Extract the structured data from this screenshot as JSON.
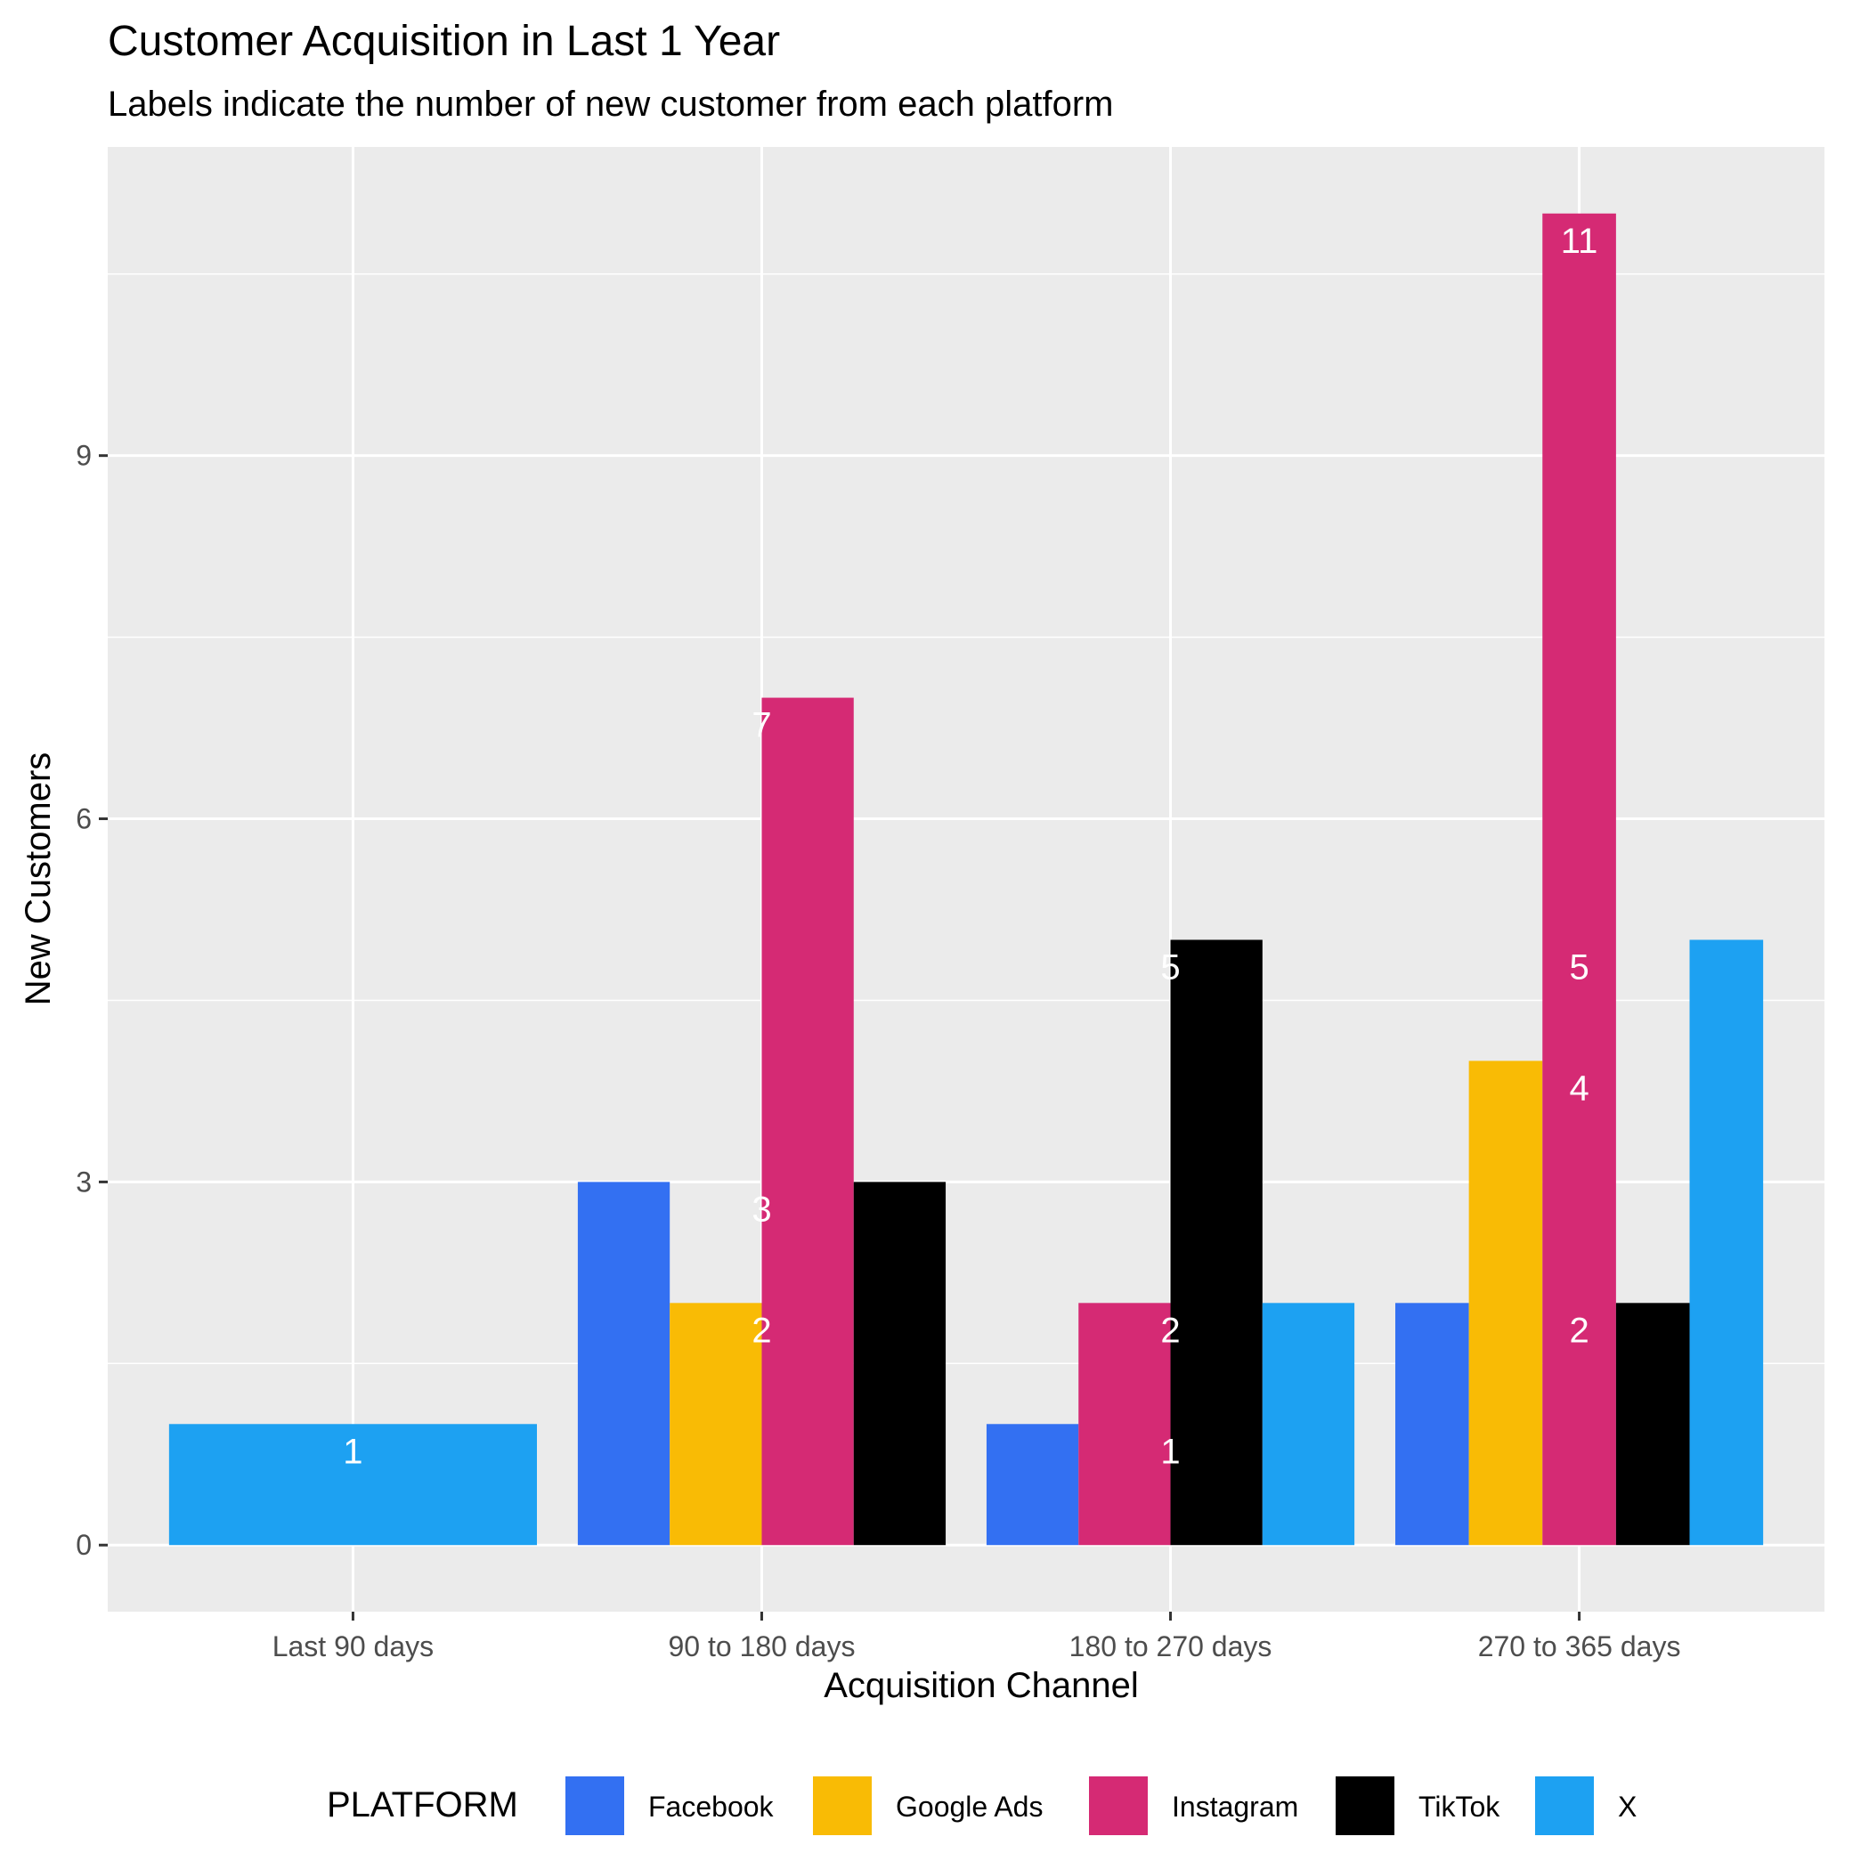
{
  "chart_data": {
    "type": "bar",
    "title": "Customer Acquisition in Last 1 Year",
    "subtitle": "Labels indicate the number of new customer from each platform",
    "xlabel": "Acquisition Channel",
    "ylabel": "New Customers",
    "categories": [
      "Last 90 days",
      "90 to 180 days",
      "180 to 270 days",
      "270 to 365 days"
    ],
    "ylim": [
      -0.55,
      11.55
    ],
    "yticks": [
      0,
      3,
      6,
      9
    ],
    "grid": true,
    "legend_position": "bottom",
    "legend_title": "PLATFORM",
    "series": [
      {
        "name": "Facebook",
        "color": "#3370F2",
        "values": [
          null,
          3,
          1,
          2
        ]
      },
      {
        "name": "Google Ads",
        "color": "#F9BB05",
        "values": [
          null,
          2,
          null,
          4
        ]
      },
      {
        "name": "Instagram",
        "color": "#D52A74",
        "values": [
          null,
          7,
          2,
          11
        ]
      },
      {
        "name": "TikTok",
        "color": "#000000",
        "values": [
          null,
          3,
          5,
          2
        ]
      },
      {
        "name": "X",
        "color": "#1DA1F2",
        "values": [
          1,
          null,
          2,
          5
        ]
      }
    ],
    "data_labels": [
      {
        "category": "Last 90 days",
        "y": 1,
        "text": "1"
      },
      {
        "category": "90 to 180 days",
        "y": 7,
        "text": "7"
      },
      {
        "category": "90 to 180 days",
        "y": 3,
        "text": "3"
      },
      {
        "category": "90 to 180 days",
        "y": 2,
        "text": "2"
      },
      {
        "category": "180 to 270 days",
        "y": 5,
        "text": "5"
      },
      {
        "category": "180 to 270 days",
        "y": 2,
        "text": "2"
      },
      {
        "category": "180 to 270 days",
        "y": 1,
        "text": "1"
      },
      {
        "category": "270 to 365 days",
        "y": 11,
        "text": "11"
      },
      {
        "category": "270 to 365 days",
        "y": 5,
        "text": "5"
      },
      {
        "category": "270 to 365 days",
        "y": 4,
        "text": "4"
      },
      {
        "category": "270 to 365 days",
        "y": 2,
        "text": "2"
      }
    ]
  }
}
